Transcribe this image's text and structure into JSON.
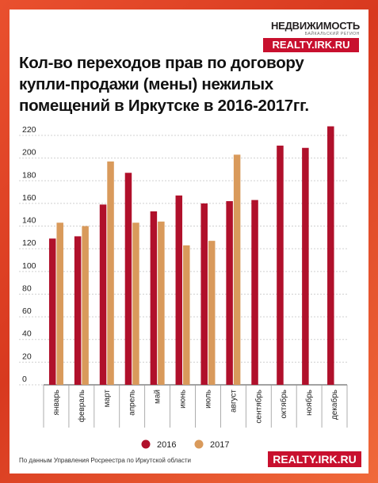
{
  "logo": {
    "name": "НЕДВИЖИМОСТЬ",
    "subtitle": "БАЙКАЛЬСКИЙ РЕГИОН",
    "url": "REALTY.IRK.RU"
  },
  "footer": {
    "source": "По данным Управления Росреестра по Иркутской области",
    "url": "REALTY.IRK.RU"
  },
  "colors": {
    "s2016": "#b0102b",
    "s2017": "#d99a5b",
    "accent": "#c8102e"
  },
  "chart_data": {
    "type": "bar",
    "title": "Кол-во переходов прав по договору купли-продажи (мены) нежилых помещений в Иркутске в 2016-2017гг.",
    "categories": [
      "январь",
      "февраль",
      "март",
      "апрель",
      "май",
      "июнь",
      "июль",
      "август",
      "сентябрь",
      "октябрь",
      "ноябрь",
      "декабрь"
    ],
    "series": [
      {
        "name": "2016",
        "values": [
          129,
          131,
          159,
          187,
          153,
          167,
          160,
          162,
          163,
          211,
          209,
          228
        ]
      },
      {
        "name": "2017",
        "values": [
          143,
          140,
          197,
          143,
          144,
          123,
          127,
          203,
          null,
          null,
          null,
          null
        ]
      }
    ],
    "yticks": [
      0,
      20,
      40,
      60,
      80,
      100,
      120,
      140,
      160,
      180,
      200,
      220
    ],
    "ylim": [
      0,
      230
    ],
    "grid": true,
    "legend": "bottom"
  }
}
